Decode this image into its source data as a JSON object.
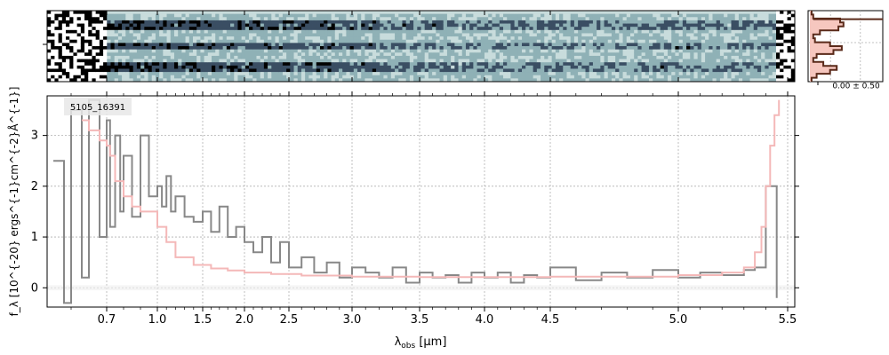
{
  "chart_data": [
    {
      "type": "heatmap",
      "panel": "2D spectrum",
      "colormap": [
        "#ffffff",
        "#c8dcdc",
        "#8fb1b6",
        "#3a4e63",
        "#000000"
      ],
      "rows": 22,
      "cols": 200,
      "bright_rows": [
        3,
        4,
        5,
        10,
        11,
        16,
        17,
        18
      ],
      "bright_region": "short-wavelength end",
      "xtick_positions": [
        0.7,
        1.0,
        1.5,
        2.0,
        2.5,
        3.0,
        3.5,
        4.0,
        4.5,
        5.0,
        5.5
      ]
    },
    {
      "type": "line",
      "panel": "spatial profile",
      "xtick_label": "0.00 ± 0.50",
      "grid": true,
      "profile": [
        0.05,
        0.1,
        0.9,
        1.0,
        0.85,
        0.3,
        0.1,
        0.15,
        0.6,
        0.95,
        0.7,
        0.2,
        0.1,
        0.4,
        0.8,
        0.6,
        0.2,
        0.05
      ]
    },
    {
      "type": "line",
      "panel": "1D spectrum",
      "label": "5105_16391",
      "xlabel_base": "λ",
      "xlabel_sub": "obs",
      "xlabel_unit": " [μm]",
      "ylabel": "f_λ [10^{-20} ergs^{-1}cm^{-2}Å^{-1}]",
      "xticks": [
        {
          "v": 0.7,
          "label": "0.7"
        },
        {
          "v": 1.0,
          "label": "1.0"
        },
        {
          "v": 1.5,
          "label": "1.5"
        },
        {
          "v": 2.0,
          "label": "2.0"
        },
        {
          "v": 2.5,
          "label": "2.5"
        },
        {
          "v": 3.0,
          "label": "3.0"
        },
        {
          "v": 3.5,
          "label": "3.5"
        },
        {
          "v": 4.0,
          "label": "4.0"
        },
        {
          "v": 4.5,
          "label": "4.5"
        },
        {
          "v": 5.0,
          "label": "5.0"
        },
        {
          "v": 5.5,
          "label": "5.5"
        }
      ],
      "yticks": [
        0,
        1,
        2,
        3
      ],
      "ylim": [
        -0.38,
        3.78
      ],
      "grid": true,
      "series": [
        {
          "role": "data",
          "color": "#888888",
          "x": [
            0.55,
            0.58,
            0.6,
            0.63,
            0.65,
            0.68,
            0.7,
            0.72,
            0.75,
            0.78,
            0.8,
            0.85,
            0.9,
            0.95,
            1.0,
            1.05,
            1.1,
            1.15,
            1.2,
            1.3,
            1.4,
            1.5,
            1.6,
            1.7,
            1.8,
            1.9,
            2.0,
            2.1,
            2.2,
            2.3,
            2.4,
            2.5,
            2.6,
            2.7,
            2.8,
            2.9,
            3.0,
            3.1,
            3.2,
            3.3,
            3.4,
            3.5,
            3.6,
            3.7,
            3.8,
            3.9,
            4.0,
            4.1,
            4.2,
            4.3,
            4.4,
            4.5,
            4.6,
            4.7,
            4.8,
            4.9,
            5.0,
            5.1,
            5.2,
            5.3,
            5.35,
            5.4,
            5.45
          ],
          "y": [
            2.5,
            -0.3,
            3.5,
            0.2,
            3.7,
            1.0,
            3.3,
            1.2,
            3.0,
            1.5,
            2.6,
            1.4,
            3.0,
            1.8,
            2.0,
            1.6,
            2.2,
            1.5,
            1.8,
            1.4,
            1.3,
            1.5,
            1.1,
            1.6,
            1.0,
            1.2,
            0.9,
            0.7,
            1.0,
            0.5,
            0.9,
            0.4,
            0.6,
            0.3,
            0.5,
            0.2,
            0.4,
            0.3,
            0.2,
            0.4,
            0.1,
            0.3,
            0.2,
            0.25,
            0.1,
            0.3,
            0.2,
            0.3,
            0.1,
            0.25,
            0.2,
            0.4,
            0.15,
            0.3,
            0.2,
            0.35,
            0.2,
            0.3,
            0.25,
            0.35,
            0.4,
            2.0,
            -0.2
          ]
        },
        {
          "role": "model",
          "color": "#f4b8b8",
          "x": [
            0.63,
            0.65,
            0.68,
            0.7,
            0.72,
            0.75,
            0.8,
            0.85,
            0.9,
            1.0,
            1.1,
            1.2,
            1.4,
            1.6,
            1.8,
            2.0,
            2.3,
            2.6,
            3.0,
            3.5,
            4.0,
            4.5,
            5.0,
            5.2,
            5.3,
            5.35,
            5.38,
            5.4,
            5.42,
            5.44,
            5.46
          ],
          "y": [
            3.3,
            3.1,
            2.9,
            2.8,
            2.6,
            2.1,
            1.8,
            1.6,
            1.5,
            1.2,
            0.9,
            0.6,
            0.45,
            0.38,
            0.34,
            0.3,
            0.27,
            0.24,
            0.22,
            0.21,
            0.21,
            0.22,
            0.25,
            0.3,
            0.4,
            0.7,
            1.2,
            2.0,
            2.8,
            3.4,
            3.7
          ]
        }
      ]
    }
  ]
}
